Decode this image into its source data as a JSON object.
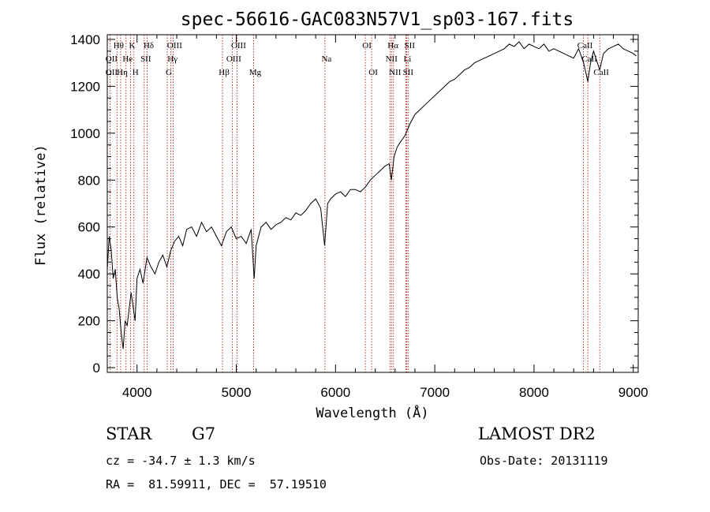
{
  "chart_data": {
    "type": "line",
    "title": "spec-56616-GAC083N57V1_sp03-167.fits",
    "xlabel": "Wavelength (Å)",
    "ylabel": "Flux (relative)",
    "xlim": [
      3700,
      9050
    ],
    "ylim": [
      -20,
      1420
    ],
    "xticks": [
      4000,
      5000,
      6000,
      7000,
      8000,
      9000
    ],
    "yticks": [
      0,
      200,
      400,
      600,
      800,
      1000,
      1200,
      1400
    ],
    "grid": false,
    "series": [
      {
        "x": [
          3700,
          3720,
          3740,
          3760,
          3780,
          3800,
          3820,
          3840,
          3860,
          3880,
          3900,
          3920,
          3940,
          3960,
          3980,
          4000,
          4030,
          4060,
          4100,
          4140,
          4180,
          4220,
          4260,
          4300,
          4340,
          4380,
          4420,
          4460,
          4500,
          4550,
          4600,
          4650,
          4700,
          4750,
          4800,
          4850,
          4900,
          4950,
          5000,
          5050,
          5100,
          5150,
          5180,
          5200,
          5250,
          5300,
          5350,
          5400,
          5450,
          5500,
          5550,
          5600,
          5650,
          5700,
          5750,
          5800,
          5850,
          5890,
          5920,
          5950,
          6000,
          6050,
          6100,
          6150,
          6200,
          6250,
          6300,
          6350,
          6400,
          6450,
          6500,
          6540,
          6563,
          6590,
          6620,
          6650,
          6700,
          6750,
          6800,
          6850,
          6900,
          6950,
          7000,
          7050,
          7100,
          7150,
          7200,
          7250,
          7300,
          7350,
          7400,
          7450,
          7500,
          7550,
          7600,
          7650,
          7700,
          7750,
          7800,
          7850,
          7900,
          7950,
          8000,
          8050,
          8100,
          8150,
          8200,
          8250,
          8300,
          8350,
          8400,
          8450,
          8500,
          8542,
          8570,
          8600,
          8662,
          8700,
          8750,
          8800,
          8850,
          8900,
          8950,
          9000,
          9030
        ],
        "y": [
          420,
          560,
          500,
          380,
          420,
          300,
          250,
          150,
          80,
          200,
          180,
          250,
          320,
          260,
          200,
          380,
          420,
          360,
          470,
          430,
          400,
          450,
          480,
          430,
          500,
          540,
          560,
          520,
          590,
          600,
          560,
          620,
          580,
          600,
          560,
          520,
          580,
          600,
          550,
          560,
          530,
          590,
          380,
          520,
          600,
          620,
          590,
          610,
          620,
          640,
          630,
          660,
          650,
          670,
          700,
          720,
          680,
          520,
          700,
          720,
          740,
          750,
          730,
          760,
          760,
          750,
          770,
          800,
          820,
          840,
          860,
          870,
          800,
          900,
          940,
          960,
          990,
          1040,
          1080,
          1100,
          1120,
          1140,
          1160,
          1180,
          1200,
          1220,
          1230,
          1250,
          1270,
          1280,
          1300,
          1310,
          1320,
          1330,
          1340,
          1350,
          1360,
          1380,
          1370,
          1390,
          1360,
          1380,
          1370,
          1360,
          1380,
          1350,
          1360,
          1350,
          1340,
          1330,
          1320,
          1360,
          1300,
          1220,
          1300,
          1350,
          1270,
          1340,
          1360,
          1370,
          1380,
          1360,
          1350,
          1340,
          1330
        ]
      }
    ],
    "annotations": [
      {
        "label": "Hθ",
        "x": 3798,
        "row": 1
      },
      {
        "label": "K",
        "x": 3934,
        "row": 1
      },
      {
        "label": "Hδ",
        "x": 4102,
        "row": 1
      },
      {
        "label": "OIII",
        "x": 4363,
        "row": 1
      },
      {
        "label": "OIII",
        "x": 5007,
        "row": 1
      },
      {
        "label": "OI",
        "x": 6300,
        "row": 1
      },
      {
        "label": "Hα",
        "x": 6563,
        "row": 1
      },
      {
        "label": "SII",
        "x": 6731,
        "row": 1
      },
      {
        "label": "CaII",
        "x": 8498,
        "row": 1
      },
      {
        "label": "OII",
        "x": 3727,
        "row": 2
      },
      {
        "label": "He",
        "x": 3889,
        "row": 2
      },
      {
        "label": "SII",
        "x": 4072,
        "row": 2
      },
      {
        "label": "Hγ",
        "x": 4341,
        "row": 2
      },
      {
        "label": "OIII",
        "x": 4959,
        "row": 2
      },
      {
        "label": "Na",
        "x": 5893,
        "row": 2
      },
      {
        "label": "NII",
        "x": 6548,
        "row": 2
      },
      {
        "label": "Li",
        "x": 6708,
        "row": 2
      },
      {
        "label": "CaII",
        "x": 8542,
        "row": 2
      },
      {
        "label": "OII",
        "x": 3727,
        "row": 3
      },
      {
        "label": "Hη",
        "x": 3835,
        "row": 3
      },
      {
        "label": "H",
        "x": 3968,
        "row": 3
      },
      {
        "label": "G",
        "x": 4304,
        "row": 3
      },
      {
        "label": "Hβ",
        "x": 4861,
        "row": 3
      },
      {
        "label": "Mg",
        "x": 5175,
        "row": 3
      },
      {
        "label": "OI",
        "x": 6364,
        "row": 3
      },
      {
        "label": "NII",
        "x": 6584,
        "row": 3
      },
      {
        "label": "SII",
        "x": 6716,
        "row": 3
      },
      {
        "label": "CaII",
        "x": 8662,
        "row": 3
      }
    ]
  },
  "info": {
    "object_type": "STAR",
    "subclass": "G7",
    "survey": "LAMOST DR2",
    "redshift": "cz = -34.7 ± 1.3 km/s",
    "obs_date": "Obs-Date: 20131119",
    "coords": "RA =  81.59911, DEC =  57.19510"
  }
}
